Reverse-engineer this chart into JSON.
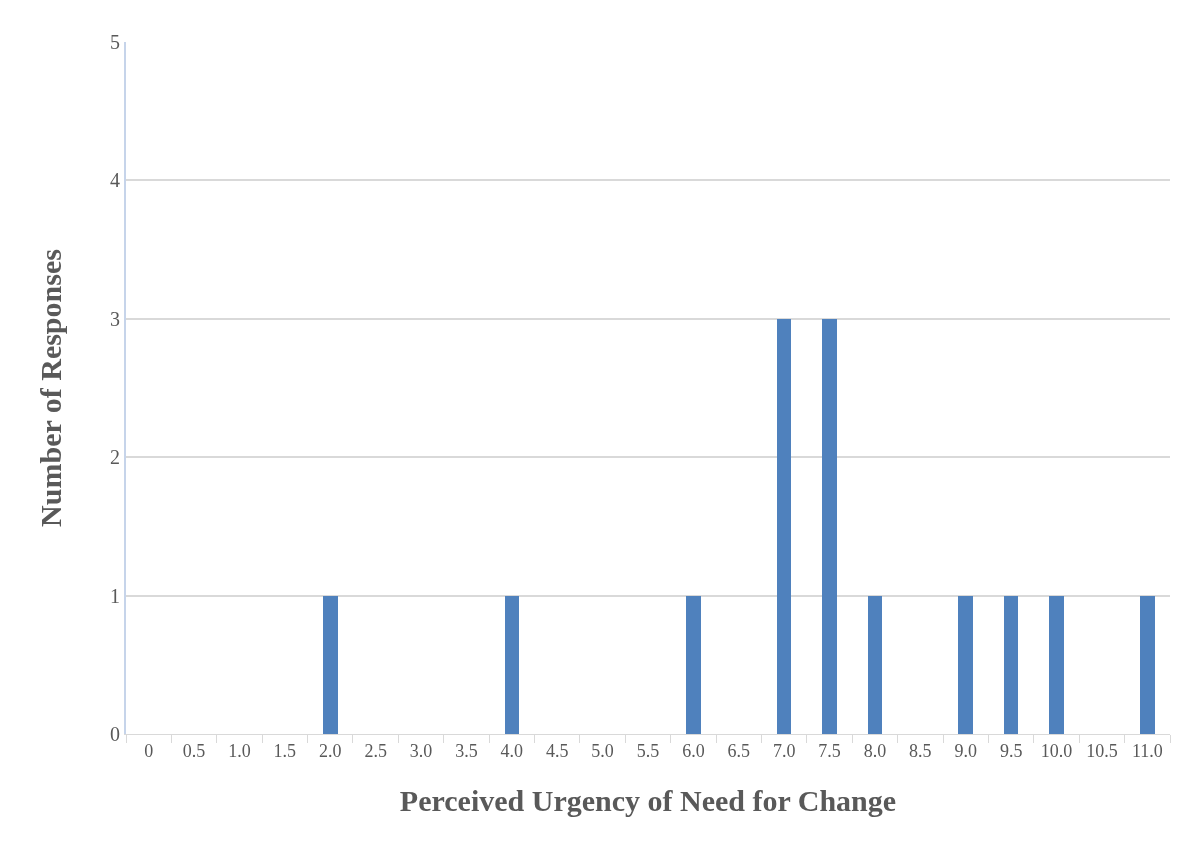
{
  "chart_data": {
    "type": "bar",
    "xlabel": "Perceived Urgency of Need for Change",
    "ylabel": "Number of Responses",
    "categories": [
      "0",
      "0.5",
      "1.0",
      "1.5",
      "2.0",
      "2.5",
      "3.0",
      "3.5",
      "4.0",
      "4.5",
      "5.0",
      "5.5",
      "6.0",
      "6.5",
      "7.0",
      "7.5",
      "8.0",
      "8.5",
      "9.0",
      "9.5",
      "10.0",
      "10.5",
      "11.0"
    ],
    "values": [
      0,
      0,
      0,
      0,
      1,
      0,
      0,
      0,
      1,
      0,
      0,
      0,
      1,
      0,
      3,
      3,
      1,
      0,
      1,
      1,
      1,
      0,
      1
    ],
    "color": "#4f81bd",
    "ylim": [
      0,
      5
    ],
    "yticks": [
      0,
      1,
      2,
      3,
      4,
      5
    ],
    "grid": "y"
  }
}
